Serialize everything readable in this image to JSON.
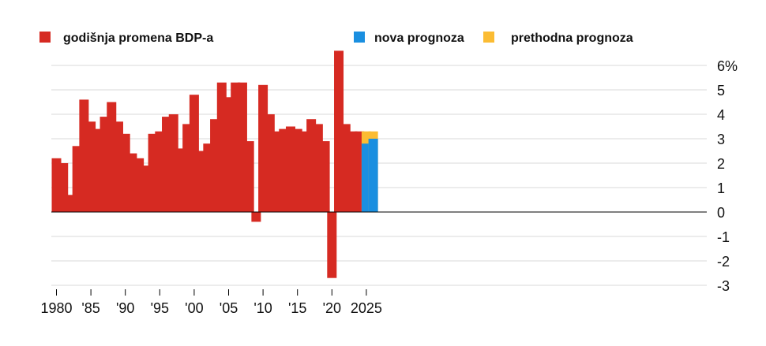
{
  "chart_data": {
    "type": "bar",
    "stacked": true,
    "x": [
      1980,
      1981,
      1982,
      1983,
      1984,
      1985,
      1986,
      1987,
      1988,
      1989,
      1990,
      1991,
      1992,
      1993,
      1994,
      1995,
      1996,
      1997,
      1998,
      1999,
      2000,
      2001,
      2002,
      2003,
      2004,
      2005,
      2006,
      2007,
      2008,
      2009,
      2010,
      2011,
      2012,
      2013,
      2014,
      2015,
      2016,
      2017,
      2018,
      2019,
      2020,
      2021,
      2022,
      2023,
      2024,
      2025,
      2026
    ],
    "series": [
      {
        "name": "godišnja promena BDP-a",
        "color": "#d62a22",
        "values": [
          2.2,
          2.0,
          0.7,
          2.7,
          4.6,
          3.7,
          3.4,
          3.9,
          4.5,
          3.7,
          3.2,
          2.4,
          2.2,
          1.9,
          3.2,
          3.3,
          3.9,
          4.0,
          2.6,
          3.6,
          4.8,
          2.5,
          2.8,
          3.8,
          5.3,
          4.7,
          5.3,
          5.3,
          2.9,
          -0.4,
          5.2,
          4.0,
          3.3,
          3.4,
          3.5,
          3.4,
          3.3,
          3.8,
          3.6,
          2.9,
          -2.7,
          6.6,
          3.6,
          3.3,
          3.3,
          null,
          null
        ]
      },
      {
        "name": "nova prognoza",
        "color": "#1a8fe0",
        "values": [
          null,
          null,
          null,
          null,
          null,
          null,
          null,
          null,
          null,
          null,
          null,
          null,
          null,
          null,
          null,
          null,
          null,
          null,
          null,
          null,
          null,
          null,
          null,
          null,
          null,
          null,
          null,
          null,
          null,
          null,
          null,
          null,
          null,
          null,
          null,
          null,
          null,
          null,
          null,
          null,
          null,
          null,
          null,
          null,
          null,
          2.8,
          3.0
        ]
      },
      {
        "name": "prethodna prognoza",
        "color": "#fbbc33",
        "values": [
          null,
          null,
          null,
          null,
          null,
          null,
          null,
          null,
          null,
          null,
          null,
          null,
          null,
          null,
          null,
          null,
          null,
          null,
          null,
          null,
          null,
          null,
          null,
          null,
          null,
          null,
          null,
          null,
          null,
          null,
          null,
          null,
          null,
          null,
          null,
          null,
          null,
          null,
          null,
          null,
          null,
          null,
          null,
          null,
          null,
          3.3,
          3.3
        ]
      }
    ],
    "yticks": [
      "6%",
      "5",
      "4",
      "3",
      "2",
      "1",
      "0",
      "-1",
      "-2",
      "-3"
    ],
    "ytick_values": [
      6,
      5,
      4,
      3,
      2,
      1,
      0,
      -1,
      -2,
      -3
    ],
    "xticks": [
      "1980",
      "'85",
      "'90",
      "'95",
      "'00",
      "'05",
      "'10",
      "'15",
      "'20",
      "2025"
    ],
    "xtick_values": [
      1980,
      1985,
      1990,
      1995,
      2000,
      2005,
      2010,
      2015,
      2020,
      2025
    ],
    "ylim": [
      -3,
      6.6
    ],
    "grid": true,
    "legend_position": "top",
    "title": "",
    "xlabel": "",
    "ylabel": ""
  }
}
